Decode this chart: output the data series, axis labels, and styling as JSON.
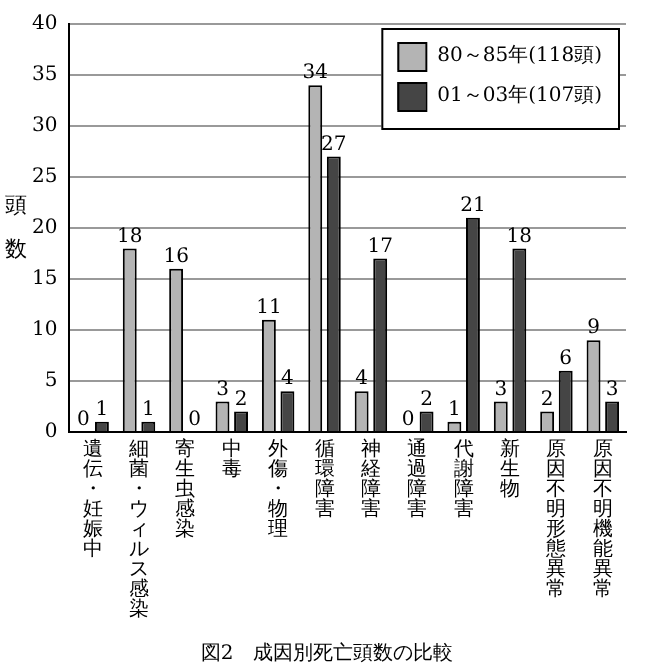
{
  "chart_data": {
    "type": "bar",
    "title": "図2　成因別死亡頭数の比較",
    "ylabel": "頭数",
    "categories": [
      "遺伝・妊娠中",
      "細菌・ウィルス感染",
      "寄生虫感染",
      "中毒",
      "外傷・物理",
      "循環障害",
      "神経障害",
      "通過障害",
      "代謝障害",
      "新生物",
      "原因不明形態異常",
      "原因不明機能異常"
    ],
    "series": [
      {
        "name": "80～85年(118頭)",
        "color": "#b4b4b4",
        "values": [
          0,
          18,
          16,
          3,
          11,
          34,
          4,
          0,
          1,
          3,
          2,
          9
        ]
      },
      {
        "name": "01～03年(107頭)",
        "color": "#454545",
        "values": [
          1,
          1,
          0,
          2,
          4,
          27,
          17,
          2,
          21,
          18,
          6,
          3
        ]
      }
    ],
    "ylim": [
      0,
      40
    ],
    "yticks": [
      0,
      5,
      10,
      15,
      20,
      25,
      30,
      35,
      40
    ],
    "grid": "y",
    "legend": "top right",
    "data_labels": true
  }
}
